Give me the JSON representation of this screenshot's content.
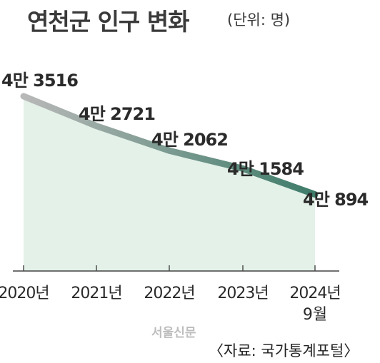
{
  "title": "연천군 인구 변화",
  "unit_note": "(단위: 명)",
  "source": "〈자료: 국가통계포털〉",
  "publisher": "서울신문",
  "colors": {
    "line_start": "#b8b8b8",
    "line_end": "#3e7c69",
    "area_fill": "#e3f1e8",
    "axis": "#444444"
  },
  "chart_data": {
    "type": "area",
    "categories": [
      "2020년",
      "2021년",
      "2022년",
      "2023년",
      "2024년"
    ],
    "category_sublabels": [
      "",
      "",
      "",
      "",
      "9월"
    ],
    "values": [
      43516,
      42721,
      42062,
      41584,
      40894
    ],
    "data_labels": [
      "4만 3516",
      "4만 2721",
      "4만 2062",
      "4만 1584",
      "4만 894"
    ],
    "title": "연천군 인구 변화",
    "xlabel": "",
    "ylabel": "",
    "ylim": [
      38850,
      43800
    ],
    "grid": false,
    "legend": "none"
  }
}
